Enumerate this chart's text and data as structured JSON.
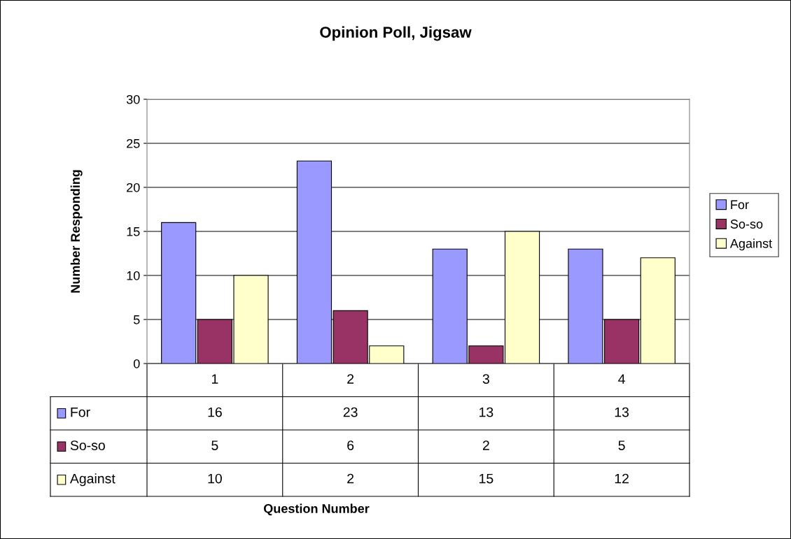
{
  "chart_data": {
    "type": "bar",
    "title": "Opinion Poll, Jigsaw",
    "annotations": [
      "Question Number"
    ],
    "ylabel": "Number Responding",
    "categories": [
      "1",
      "2",
      "3",
      "4"
    ],
    "series": [
      {
        "name": "For",
        "color": "#9999ff",
        "values": [
          16,
          23,
          13,
          13
        ]
      },
      {
        "name": "So-so",
        "color": "#993366",
        "values": [
          5,
          6,
          2,
          5
        ]
      },
      {
        "name": "Against",
        "color": "#ffffcc",
        "values": [
          10,
          2,
          15,
          12
        ]
      }
    ],
    "ylim": [
      0,
      30
    ],
    "yticks": [
      0,
      5,
      10,
      15,
      20,
      25,
      30
    ],
    "grid": "y",
    "legend": "right",
    "data_labels": true
  }
}
